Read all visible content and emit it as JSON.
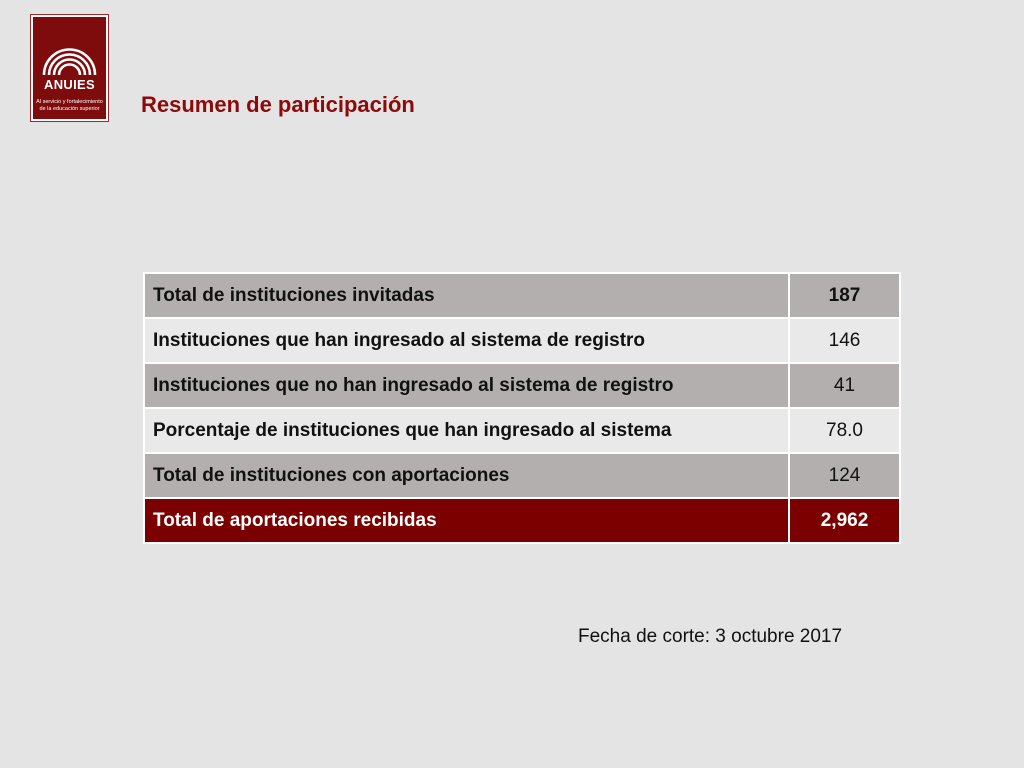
{
  "logo": {
    "name": "ANUIES",
    "tagline": "Al servicio y fortalecimiento de la educación superior",
    "background_color": "#7e0c0c"
  },
  "title": "Resumen de participación",
  "table": {
    "rows": [
      {
        "label": "Total de instituciones invitadas",
        "value": "187"
      },
      {
        "label": "Instituciones que han ingresado al sistema de registro",
        "value": "146"
      },
      {
        "label": "Instituciones que no han ingresado al sistema de registro",
        "value": "41"
      },
      {
        "label": "Porcentaje de instituciones que han ingresado al sistema",
        "value": "78.0"
      },
      {
        "label": "Total de instituciones con aportaciones",
        "value": "124"
      },
      {
        "label": "Total de aportaciones recibidas",
        "value": "2,962"
      }
    ],
    "colors": {
      "dark_row": "#b3afaf",
      "light_row": "#e9e9e9",
      "total_row": "#7b0000"
    }
  },
  "footer": {
    "date_text": "Fecha de corte: 3 octubre 2017"
  }
}
